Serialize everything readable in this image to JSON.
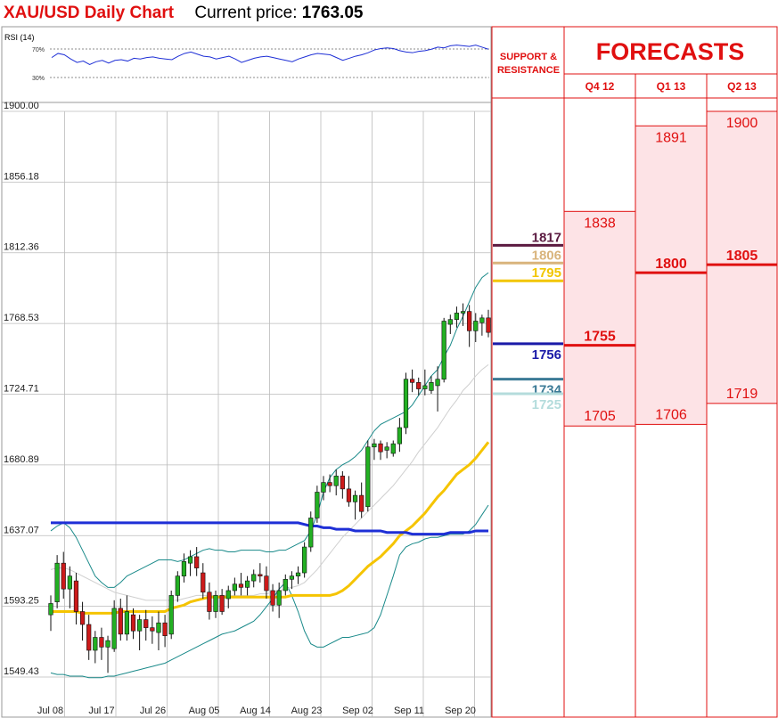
{
  "header": {
    "title": "XAU/USD Daily Chart",
    "price_label": "Current price:",
    "price_value": "1763.05"
  },
  "colors": {
    "accent_red": "#e01010",
    "candle_up": "#22b022",
    "candle_down": "#cc1a1a",
    "ma_blue": "#1e2fd6",
    "ma_yellow": "#f5c400",
    "bollinger": "#1a8a8a",
    "forecast_fill": "#fde3e6"
  },
  "rsi": {
    "label": "RSI (14)",
    "level_high": "70%",
    "level_low": "30%",
    "values": [
      62,
      68,
      66,
      60,
      55,
      57,
      52,
      56,
      58,
      54,
      58,
      59,
      57,
      61,
      60,
      62,
      63,
      61,
      60,
      59,
      64,
      68,
      70,
      67,
      64,
      63,
      60,
      62,
      64,
      60,
      55,
      58,
      61,
      63,
      64,
      62,
      60,
      58,
      56,
      60,
      63,
      66,
      68,
      67,
      66,
      62,
      58,
      61,
      64,
      66,
      69,
      73,
      75,
      76,
      75,
      72,
      70,
      69,
      71,
      72,
      74,
      77,
      76,
      79,
      80,
      79,
      78,
      80,
      77,
      74
    ]
  },
  "chart_data": {
    "type": "candlestick",
    "title": "XAU/USD Daily Chart",
    "ylim": [
      1549.43,
      1900.0
    ],
    "y_ticks": [
      "1900.00",
      "1856.18",
      "1812.36",
      "1768.53",
      "1724.71",
      "1680.89",
      "1637.07",
      "1593.25",
      "1549.43"
    ],
    "x_ticks": [
      "Jul 08",
      "Jul 17",
      "Jul 26",
      "Aug 05",
      "Aug 14",
      "Aug 23",
      "Sep 02",
      "Sep 11",
      "Sep 20"
    ],
    "candles": [
      {
        "o": 1588,
        "h": 1600,
        "l": 1578,
        "c": 1595
      },
      {
        "o": 1596,
        "h": 1625,
        "l": 1592,
        "c": 1620
      },
      {
        "o": 1620,
        "h": 1627,
        "l": 1598,
        "c": 1604
      },
      {
        "o": 1604,
        "h": 1618,
        "l": 1592,
        "c": 1612
      },
      {
        "o": 1609,
        "h": 1614,
        "l": 1582,
        "c": 1590
      },
      {
        "o": 1590,
        "h": 1596,
        "l": 1572,
        "c": 1582
      },
      {
        "o": 1582,
        "h": 1588,
        "l": 1560,
        "c": 1566
      },
      {
        "o": 1566,
        "h": 1578,
        "l": 1558,
        "c": 1574
      },
      {
        "o": 1574,
        "h": 1580,
        "l": 1560,
        "c": 1568
      },
      {
        "o": 1568,
        "h": 1575,
        "l": 1552,
        "c": 1572
      },
      {
        "o": 1567,
        "h": 1597,
        "l": 1565,
        "c": 1592
      },
      {
        "o": 1592,
        "h": 1598,
        "l": 1572,
        "c": 1576
      },
      {
        "o": 1576,
        "h": 1600,
        "l": 1572,
        "c": 1590
      },
      {
        "o": 1588,
        "h": 1592,
        "l": 1573,
        "c": 1578
      },
      {
        "o": 1578,
        "h": 1588,
        "l": 1566,
        "c": 1585
      },
      {
        "o": 1585,
        "h": 1591,
        "l": 1572,
        "c": 1580
      },
      {
        "o": 1580,
        "h": 1587,
        "l": 1570,
        "c": 1578
      },
      {
        "o": 1577,
        "h": 1590,
        "l": 1566,
        "c": 1583
      },
      {
        "o": 1583,
        "h": 1588,
        "l": 1568,
        "c": 1575
      },
      {
        "o": 1576,
        "h": 1603,
        "l": 1573,
        "c": 1600
      },
      {
        "o": 1600,
        "h": 1615,
        "l": 1596,
        "c": 1612
      },
      {
        "o": 1612,
        "h": 1626,
        "l": 1608,
        "c": 1621
      },
      {
        "o": 1620,
        "h": 1628,
        "l": 1612,
        "c": 1624
      },
      {
        "o": 1624,
        "h": 1630,
        "l": 1612,
        "c": 1617
      },
      {
        "o": 1614,
        "h": 1620,
        "l": 1598,
        "c": 1602
      },
      {
        "o": 1602,
        "h": 1608,
        "l": 1585,
        "c": 1590
      },
      {
        "o": 1590,
        "h": 1603,
        "l": 1586,
        "c": 1600
      },
      {
        "o": 1600,
        "h": 1604,
        "l": 1588,
        "c": 1590
      },
      {
        "o": 1598,
        "h": 1606,
        "l": 1592,
        "c": 1603
      },
      {
        "o": 1603,
        "h": 1611,
        "l": 1600,
        "c": 1607
      },
      {
        "o": 1607,
        "h": 1614,
        "l": 1600,
        "c": 1605
      },
      {
        "o": 1605,
        "h": 1612,
        "l": 1600,
        "c": 1609
      },
      {
        "o": 1609,
        "h": 1616,
        "l": 1605,
        "c": 1613
      },
      {
        "o": 1613,
        "h": 1620,
        "l": 1608,
        "c": 1612
      },
      {
        "o": 1612,
        "h": 1618,
        "l": 1598,
        "c": 1603
      },
      {
        "o": 1603,
        "h": 1607,
        "l": 1590,
        "c": 1594
      },
      {
        "o": 1594,
        "h": 1608,
        "l": 1586,
        "c": 1603
      },
      {
        "o": 1603,
        "h": 1613,
        "l": 1600,
        "c": 1610
      },
      {
        "o": 1610,
        "h": 1615,
        "l": 1604,
        "c": 1612
      },
      {
        "o": 1612,
        "h": 1618,
        "l": 1607,
        "c": 1614
      },
      {
        "o": 1614,
        "h": 1633,
        "l": 1611,
        "c": 1630
      },
      {
        "o": 1630,
        "h": 1652,
        "l": 1627,
        "c": 1648
      },
      {
        "o": 1648,
        "h": 1668,
        "l": 1645,
        "c": 1664
      },
      {
        "o": 1664,
        "h": 1674,
        "l": 1659,
        "c": 1670
      },
      {
        "o": 1670,
        "h": 1675,
        "l": 1664,
        "c": 1668
      },
      {
        "o": 1668,
        "h": 1678,
        "l": 1662,
        "c": 1674
      },
      {
        "o": 1674,
        "h": 1677,
        "l": 1660,
        "c": 1666
      },
      {
        "o": 1666,
        "h": 1674,
        "l": 1655,
        "c": 1658
      },
      {
        "o": 1658,
        "h": 1665,
        "l": 1647,
        "c": 1662
      },
      {
        "o": 1662,
        "h": 1670,
        "l": 1648,
        "c": 1652
      },
      {
        "o": 1655,
        "h": 1696,
        "l": 1652,
        "c": 1692
      },
      {
        "o": 1692,
        "h": 1697,
        "l": 1684,
        "c": 1694
      },
      {
        "o": 1694,
        "h": 1696,
        "l": 1684,
        "c": 1689
      },
      {
        "o": 1690,
        "h": 1695,
        "l": 1685,
        "c": 1692
      },
      {
        "o": 1688,
        "h": 1696,
        "l": 1686,
        "c": 1694
      },
      {
        "o": 1694,
        "h": 1710,
        "l": 1689,
        "c": 1704
      },
      {
        "o": 1704,
        "h": 1738,
        "l": 1700,
        "c": 1734
      },
      {
        "o": 1734,
        "h": 1740,
        "l": 1726,
        "c": 1732
      },
      {
        "o": 1732,
        "h": 1735,
        "l": 1724,
        "c": 1728
      },
      {
        "o": 1728,
        "h": 1740,
        "l": 1724,
        "c": 1730
      },
      {
        "o": 1727,
        "h": 1736,
        "l": 1725,
        "c": 1732
      },
      {
        "o": 1730,
        "h": 1742,
        "l": 1714,
        "c": 1734
      },
      {
        "o": 1734,
        "h": 1772,
        "l": 1732,
        "c": 1770
      },
      {
        "o": 1768,
        "h": 1774,
        "l": 1762,
        "c": 1771
      },
      {
        "o": 1771,
        "h": 1779,
        "l": 1766,
        "c": 1775
      },
      {
        "o": 1775,
        "h": 1781,
        "l": 1767,
        "c": 1776
      },
      {
        "o": 1776,
        "h": 1780,
        "l": 1754,
        "c": 1764
      },
      {
        "o": 1764,
        "h": 1775,
        "l": 1757,
        "c": 1770
      },
      {
        "o": 1769,
        "h": 1774,
        "l": 1761,
        "c": 1772
      },
      {
        "o": 1772,
        "h": 1777,
        "l": 1760,
        "c": 1763
      }
    ],
    "ma_blue": [
      1645,
      1645,
      1645,
      1645,
      1645,
      1645,
      1645,
      1645,
      1645,
      1645,
      1645,
      1645,
      1645,
      1645,
      1645,
      1645,
      1645,
      1645,
      1645,
      1645,
      1645,
      1645,
      1645,
      1645,
      1645,
      1645,
      1645,
      1645,
      1645,
      1645,
      1645,
      1645,
      1645,
      1645,
      1645,
      1645,
      1645,
      1645,
      1645,
      1645,
      1644,
      1643,
      1643,
      1642,
      1642,
      1641,
      1641,
      1641,
      1640,
      1640,
      1640,
      1640,
      1640,
      1639,
      1639,
      1639,
      1639,
      1638,
      1638,
      1638,
      1638,
      1638,
      1638,
      1639,
      1639,
      1639,
      1639,
      1640,
      1640,
      1640
    ],
    "ma_yellow": [
      1590,
      1590,
      1590,
      1590,
      1590,
      1589,
      1589,
      1589,
      1589,
      1589,
      1589,
      1590,
      1590,
      1590,
      1590,
      1590,
      1590,
      1590,
      1590,
      1592,
      1593,
      1594,
      1596,
      1597,
      1598,
      1599,
      1599,
      1599,
      1599,
      1599,
      1599,
      1599,
      1599,
      1599,
      1599,
      1599,
      1599,
      1599,
      1600,
      1600,
      1600,
      1600,
      1600,
      1600,
      1600,
      1601,
      1603,
      1606,
      1610,
      1614,
      1618,
      1621,
      1624,
      1628,
      1632,
      1637,
      1640,
      1643,
      1647,
      1651,
      1656,
      1661,
      1665,
      1670,
      1675,
      1678,
      1681,
      1685,
      1690,
      1695
    ],
    "bb_upper": [
      1640,
      1643,
      1645,
      1642,
      1636,
      1628,
      1620,
      1612,
      1608,
      1605,
      1605,
      1608,
      1612,
      1614,
      1616,
      1618,
      1620,
      1622,
      1622,
      1622,
      1621,
      1622,
      1624,
      1626,
      1628,
      1629,
      1628,
      1628,
      1627,
      1627,
      1628,
      1628,
      1628,
      1628,
      1627,
      1627,
      1628,
      1628,
      1630,
      1632,
      1634,
      1640,
      1650,
      1664,
      1673,
      1678,
      1681,
      1683,
      1686,
      1690,
      1696,
      1702,
      1706,
      1708,
      1710,
      1712,
      1714,
      1718,
      1724,
      1730,
      1736,
      1740,
      1748,
      1755,
      1765,
      1773,
      1782,
      1791,
      1797,
      1800
    ],
    "bb_middle": [
      1616,
      1617,
      1617,
      1616,
      1614,
      1612,
      1610,
      1608,
      1606,
      1604,
      1602,
      1601,
      1600,
      1599,
      1598,
      1597,
      1597,
      1597,
      1597,
      1597,
      1597,
      1598,
      1599,
      1600,
      1600,
      1600,
      1600,
      1600,
      1600,
      1600,
      1600,
      1600,
      1600,
      1601,
      1601,
      1602,
      1603,
      1604,
      1605,
      1606,
      1608,
      1612,
      1616,
      1621,
      1626,
      1631,
      1636,
      1640,
      1644,
      1648,
      1652,
      1656,
      1660,
      1664,
      1668,
      1673,
      1678,
      1683,
      1689,
      1694,
      1699,
      1704,
      1710,
      1716,
      1721,
      1727,
      1731,
      1736,
      1740,
      1743
    ],
    "bb_lower": [
      1552,
      1551,
      1551,
      1550,
      1550,
      1550,
      1549,
      1549,
      1549,
      1550,
      1550,
      1551,
      1552,
      1553,
      1554,
      1555,
      1556,
      1557,
      1558,
      1560,
      1562,
      1564,
      1566,
      1568,
      1570,
      1572,
      1574,
      1576,
      1577,
      1578,
      1580,
      1582,
      1584,
      1588,
      1593,
      1598,
      1604,
      1608,
      1600,
      1590,
      1578,
      1570,
      1568,
      1568,
      1570,
      1572,
      1574,
      1574,
      1575,
      1576,
      1577,
      1580,
      1588,
      1600,
      1612,
      1625,
      1630,
      1632,
      1633,
      1635,
      1636,
      1636,
      1637,
      1638,
      1638,
      1638,
      1640,
      1644,
      1650,
      1656
    ],
    "support_resistance": [
      {
        "value": 1817,
        "label": "1817",
        "color": "#5b1a40"
      },
      {
        "value": 1806,
        "label": "1806",
        "color": "#d9b47c"
      },
      {
        "value": 1795,
        "label": "1795",
        "color": "#f2c600"
      },
      {
        "value": 1756,
        "label": "1756",
        "color": "#1a1aa8"
      },
      {
        "value": 1734,
        "label": "1734",
        "color": "#3b7a96"
      },
      {
        "value": 1725,
        "label": "1725",
        "color": "#b4dcdc"
      }
    ],
    "forecasts": [
      {
        "period": "Q4 12",
        "high": 1838,
        "high_label": "1838",
        "mid": 1755,
        "mid_label": "1755",
        "low": 1705,
        "low_label": "1705"
      },
      {
        "period": "Q1 13",
        "high": 1891,
        "high_label": "1891",
        "mid": 1800,
        "mid_label": "1800",
        "low": 1706,
        "low_label": "1706"
      },
      {
        "period": "Q2 13",
        "high": 1900,
        "high_label": "1900",
        "mid": 1805,
        "mid_label": "1805",
        "low": 1719,
        "low_label": "1719"
      }
    ]
  },
  "panel": {
    "support_title_line1": "SUPPORT &",
    "support_title_line2": "RESISTANCE",
    "forecasts_title": "FORECASTS"
  }
}
